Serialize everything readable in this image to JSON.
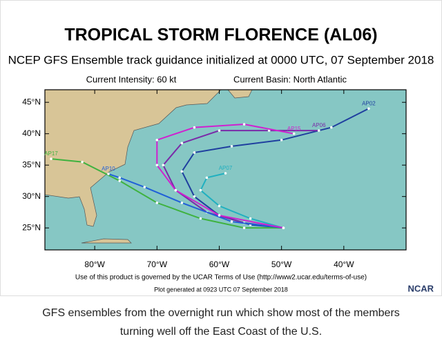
{
  "header": {
    "title": "TROPICAL STORM FLORENCE (AL06)",
    "subtitle": "NCEP GFS Ensemble track guidance initialized at 0000 UTC, 07 September 2018",
    "intensity": "Current Intensity: 60 kt",
    "basin": "Current Basin: North Atlantic"
  },
  "map": {
    "type": "track-map",
    "xlim": [
      -88,
      -30
    ],
    "ylim": [
      21.5,
      47
    ],
    "xticks": [
      {
        "value": -80,
        "label": "80°W"
      },
      {
        "value": -70,
        "label": "70°W"
      },
      {
        "value": -60,
        "label": "60°W"
      },
      {
        "value": -50,
        "label": "50°W"
      },
      {
        "value": -40,
        "label": "40°W"
      }
    ],
    "yticks": [
      {
        "value": 25,
        "label": "25°N"
      },
      {
        "value": 30,
        "label": "30°N"
      },
      {
        "value": 35,
        "label": "35°N"
      },
      {
        "value": 40,
        "label": "40°N"
      },
      {
        "value": 45,
        "label": "45°N"
      }
    ],
    "tracks": [
      {
        "name": "AP02",
        "color": "#1f3f9f",
        "lon": [
          -49.7,
          -55,
          -60,
          -64,
          -66,
          -64,
          -58,
          -50,
          -42,
          -36
        ],
        "lat": [
          25,
          25.5,
          27,
          30,
          34,
          37,
          38,
          39,
          41,
          44
        ]
      },
      {
        "name": "AP06",
        "color": "#7a2aa8",
        "lon": [
          -49.7,
          -56,
          -62,
          -67,
          -69,
          -66,
          -60,
          -52,
          -44
        ],
        "lat": [
          25,
          25.8,
          27.5,
          31,
          35,
          38.5,
          40.5,
          40.5,
          40.5
        ]
      },
      {
        "name": "AP17",
        "color": "#3fb23f",
        "lon": [
          -49.7,
          -56,
          -63,
          -70,
          -76,
          -82,
          -87
        ],
        "lat": [
          25,
          25,
          26.5,
          29,
          32.5,
          35.5,
          36
        ]
      },
      {
        "name": "AP10",
        "color": "#2060d8",
        "lon": [
          -49.7,
          -58,
          -66,
          -72,
          -76,
          -77.8
        ],
        "lat": [
          25,
          26,
          29,
          31.5,
          33,
          33.6
        ]
      },
      {
        "name": "AP07",
        "color": "#20b0c0",
        "lon": [
          -49.7,
          -55,
          -60,
          -63,
          -62,
          -59
        ],
        "lat": [
          25,
          26.5,
          28.5,
          31,
          33,
          33.7
        ]
      },
      {
        "name": "AP15",
        "color": "#d020d0",
        "lon": [
          -49.7,
          -60,
          -67,
          -70,
          -70,
          -64,
          -56,
          -48
        ],
        "lat": [
          25,
          27,
          31,
          35,
          39,
          41,
          41.5,
          40
        ]
      }
    ]
  },
  "footer": {
    "terms": "Use of this product is governed by the UCAR Terms of Use (http://www2.ucar.edu/terms-of-use)",
    "generated": "Plot generated at 0923 UTC  07 September 2018",
    "logo": "NCAR"
  },
  "caption": "GFS ensembles from the overnight run which show most of the members turning well off the East Coast of the U.S."
}
